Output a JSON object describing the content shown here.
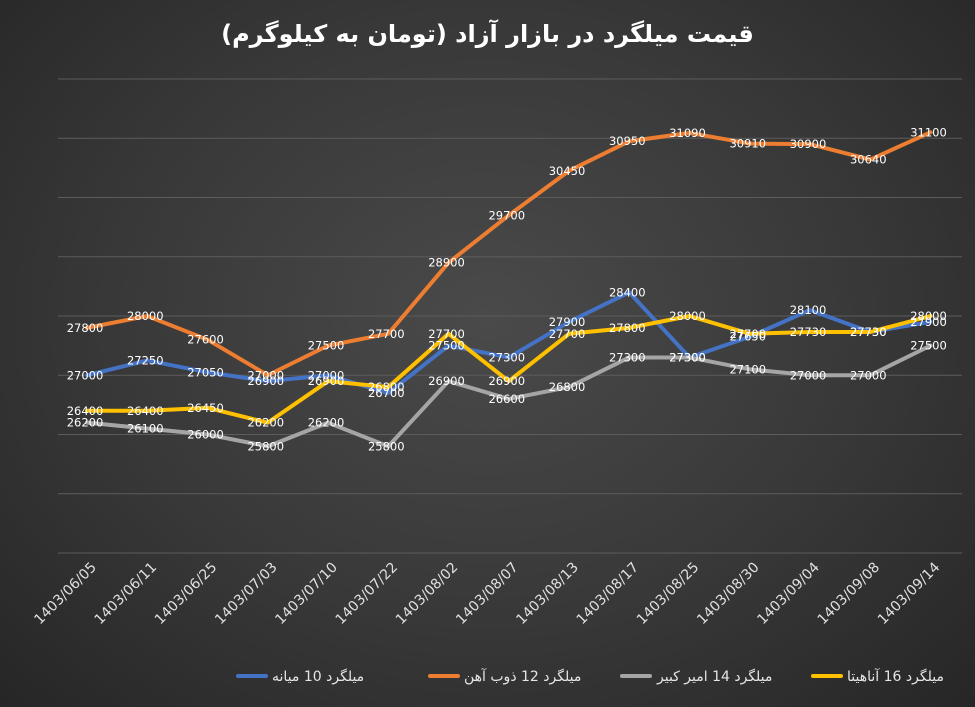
{
  "chart_data": {
    "type": "line",
    "title": "قیمت میلگرد در بازار آزاد (تومان به کیلوگرم)",
    "xlabel": "",
    "ylabel": "",
    "ylim": [
      24000,
      32000
    ],
    "grid": true,
    "legend_position": "bottom",
    "categories": [
      "1403/06/05",
      "1403/06/11",
      "1403/06/25",
      "1403/07/03",
      "1403/07/10",
      "1403/07/22",
      "1403/08/02",
      "1403/08/07",
      "1403/08/13",
      "1403/08/17",
      "1403/08/25",
      "1403/08/30",
      "1403/09/04",
      "1403/09/08",
      "1403/09/14"
    ],
    "series": [
      {
        "name": "میلگرد 10 میانه",
        "color": "#4472C4",
        "values": [
          27000,
          27250,
          27050,
          26900,
          27000,
          26700,
          27500,
          27300,
          27900,
          28400,
          27300,
          27650,
          28100,
          27730,
          27900
        ]
      },
      {
        "name": "میلگرد 12 ذوب آهن",
        "color": "#ED7D31",
        "values": [
          27800,
          28000,
          27600,
          27000,
          27500,
          27700,
          28900,
          29700,
          30450,
          30950,
          31090,
          30910,
          30900,
          30640,
          31100
        ]
      },
      {
        "name": "میلگرد 14 امیر کبیر",
        "color": "#A5A5A5",
        "values": [
          26200,
          26100,
          26000,
          25800,
          26200,
          25800,
          26900,
          26600,
          26800,
          27300,
          27300,
          27100,
          27000,
          27000,
          27500
        ]
      },
      {
        "name": "میلگرد 16 آناهیتا",
        "color": "#FFC000",
        "values": [
          26400,
          26400,
          26450,
          26200,
          26900,
          26800,
          27700,
          26900,
          27700,
          27800,
          28000,
          27700,
          27730,
          27730,
          28000
        ]
      }
    ]
  }
}
